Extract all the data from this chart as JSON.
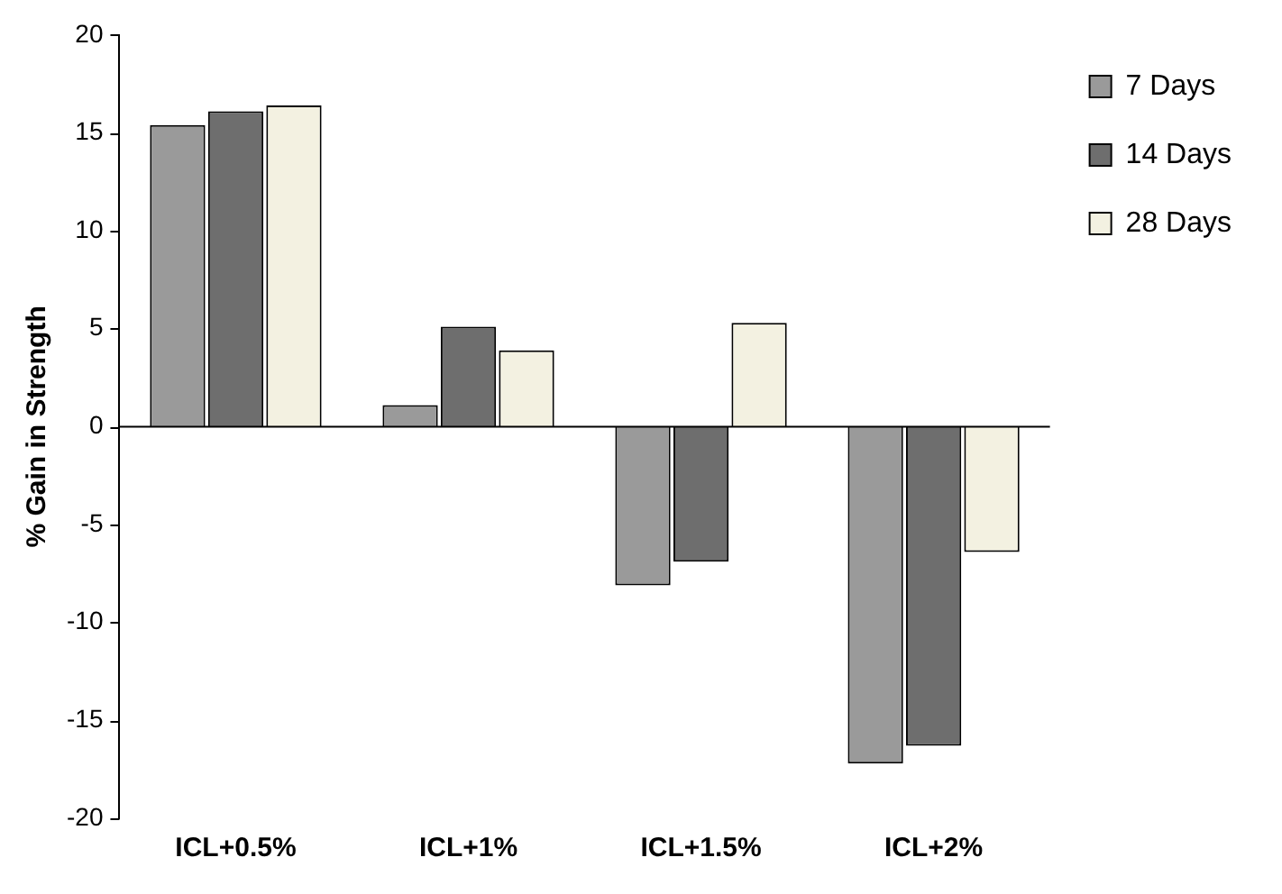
{
  "chart_data": {
    "type": "bar",
    "ylabel": "% Gain in Strength",
    "categories": [
      "ICL+0.5%",
      "ICL+1%",
      "ICL+1.5%",
      "ICL+2%"
    ],
    "series": [
      {
        "name": "7 Days",
        "color": "#9a9a9a",
        "values": [
          15.4,
          1.1,
          -8.1,
          -17.2
        ]
      },
      {
        "name": "14 Days",
        "color": "#6e6e6e",
        "values": [
          16.1,
          5.1,
          -6.9,
          -16.3
        ]
      },
      {
        "name": "28 Days",
        "color": "#f3f1e1",
        "values": [
          16.4,
          3.9,
          5.3,
          -6.4
        ]
      }
    ],
    "ylim": [
      -20,
      20
    ],
    "yticks": [
      -20,
      -15,
      -10,
      -5,
      0,
      5,
      10,
      15,
      20
    ],
    "legend": "top right"
  }
}
